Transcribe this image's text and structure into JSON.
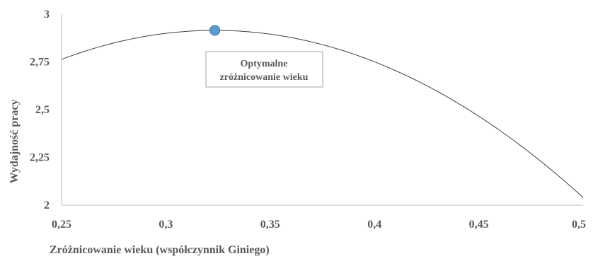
{
  "chart_data": {
    "type": "line",
    "title": "",
    "xlabel": "Zróżnicowanie wieku (współczynnik Giniego)",
    "ylabel": "Wydajność pracy",
    "xlim": [
      0.25,
      0.5
    ],
    "ylim": [
      2,
      3
    ],
    "x_ticks": [
      0.25,
      0.3,
      0.35,
      0.4,
      0.45,
      0.5
    ],
    "y_ticks": [
      2,
      2.25,
      2.5,
      2.75,
      3
    ],
    "x_tick_labels": [
      "0,25",
      "0,3",
      "0,35",
      "0,4",
      "0,45",
      "0,5"
    ],
    "y_tick_labels": [
      "2",
      "2,25",
      "2,5",
      "2,75",
      "3"
    ],
    "grid": false,
    "legend": "none",
    "series": [
      {
        "x": [
          0.25,
          0.275,
          0.3,
          0.3235,
          0.35,
          0.375,
          0.4,
          0.425,
          0.45,
          0.475,
          0.5
        ],
        "y": [
          2.76,
          2.84,
          2.895,
          2.915,
          2.895,
          2.84,
          2.75,
          2.62,
          2.45,
          2.25,
          2.04
        ]
      }
    ],
    "highlight_point": {
      "x": 0.3235,
      "y": 2.915
    },
    "annotation": {
      "lines": [
        "Optymalne",
        "zróżnicowanie wieku"
      ]
    },
    "colors": {
      "line": "#404040",
      "axis": "#bfbfbf",
      "marker_fill": "#5b9bd5",
      "marker_stroke": "#41719c",
      "annotation_border": "#a6a6a6",
      "text": "#595959"
    }
  }
}
